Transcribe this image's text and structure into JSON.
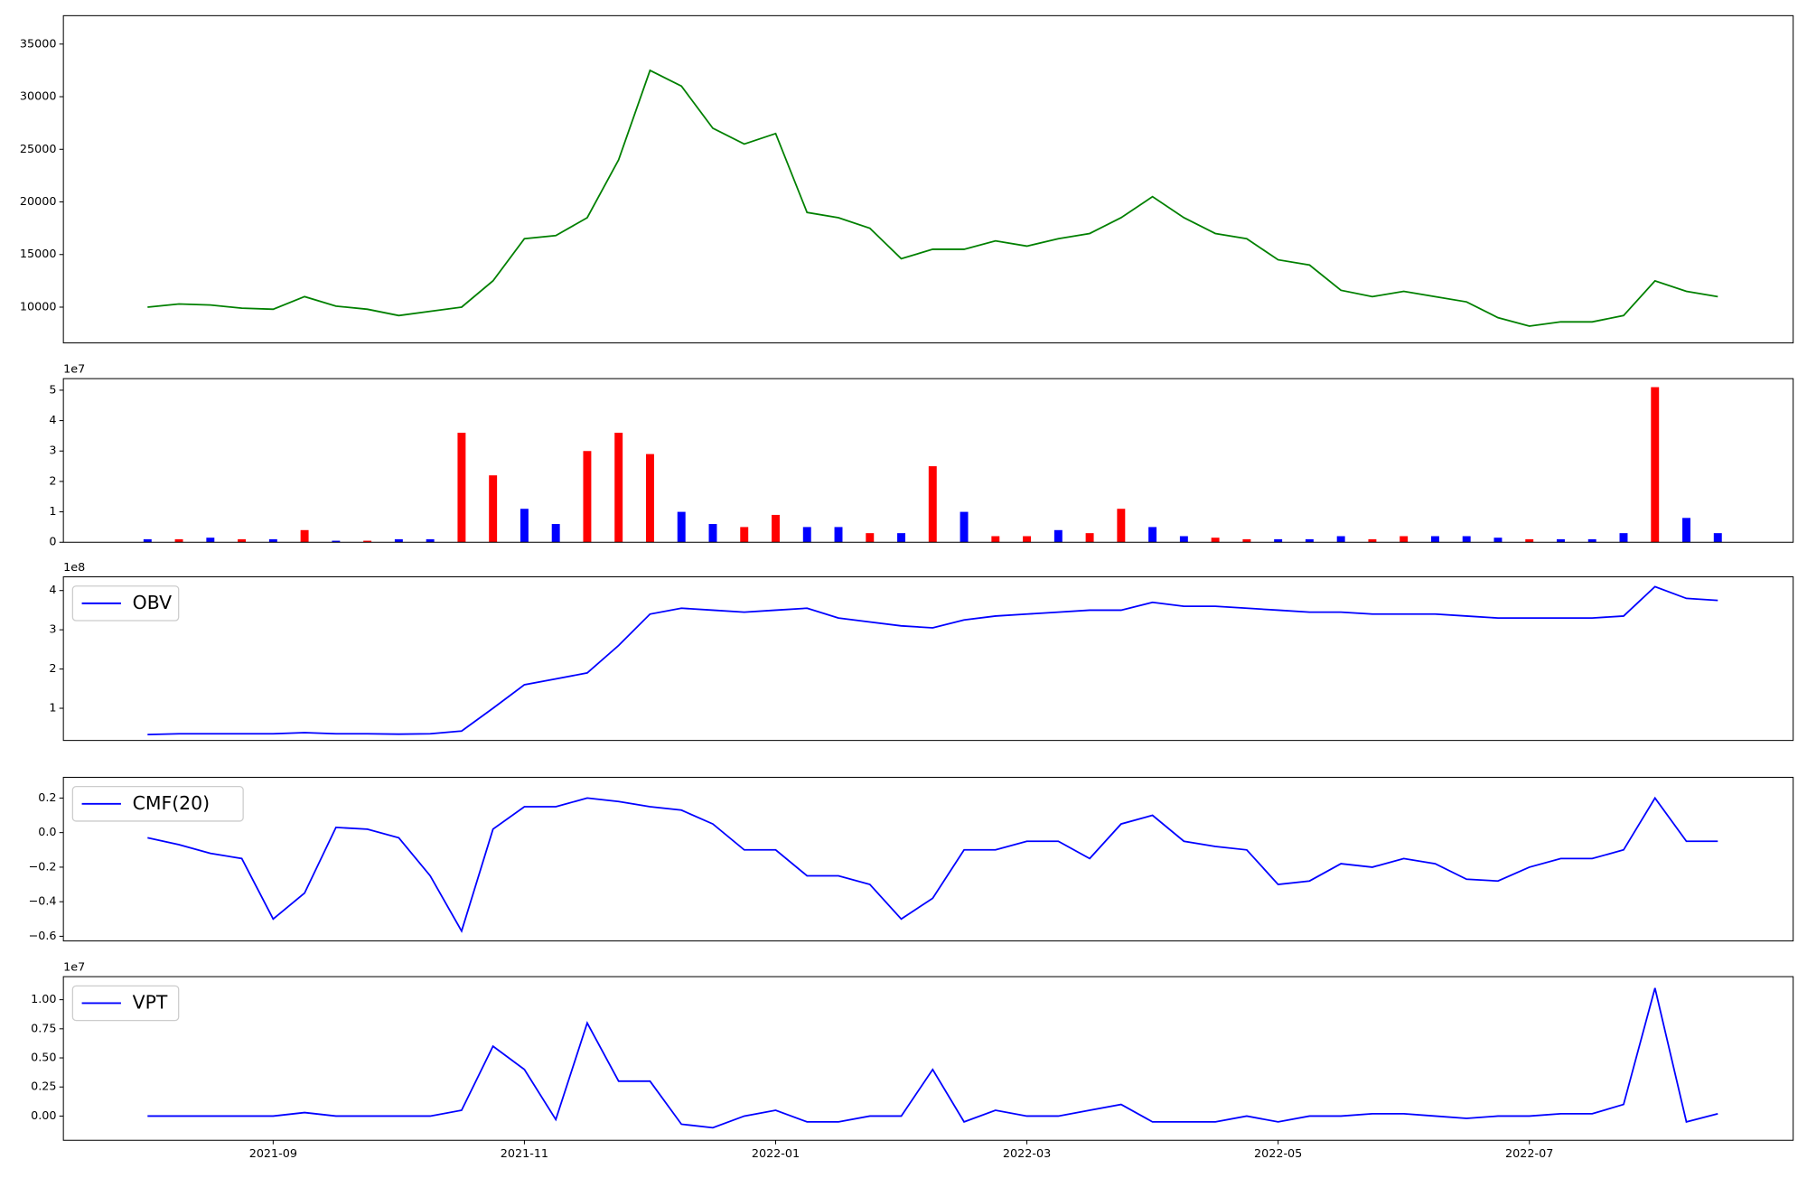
{
  "chart_data": [
    {
      "type": "line",
      "color": "green",
      "x": [
        0,
        0.25,
        0.5,
        0.75,
        1,
        1.25,
        1.5,
        1.75,
        2,
        2.25,
        2.5,
        2.75,
        3,
        3.25,
        3.5,
        3.75,
        4,
        4.25,
        4.5,
        4.75,
        5,
        5.25,
        5.5,
        5.75,
        6,
        6.25,
        6.5,
        6.75,
        7,
        7.25,
        7.5,
        7.75,
        8,
        8.25,
        8.5,
        8.75,
        9,
        9.25,
        9.5,
        9.75,
        10,
        10.25,
        10.5,
        10.75,
        11,
        11.25,
        11.5,
        11.75,
        12,
        12.25,
        12.5
      ],
      "values": [
        10000,
        10300,
        10200,
        9900,
        9800,
        11000,
        10100,
        9800,
        9200,
        9600,
        10000,
        12500,
        16500,
        16800,
        18500,
        24000,
        32500,
        31000,
        27000,
        25500,
        26500,
        19000,
        18500,
        17500,
        14600,
        15500,
        15500,
        16300,
        15800,
        16500,
        17000,
        18500,
        20500,
        18500,
        17000,
        16500,
        14500,
        14000,
        11600,
        11000,
        11500,
        11000,
        10500,
        9000,
        8200,
        8600,
        8600,
        9200,
        12500,
        11500,
        11000
      ],
      "xlim": [
        -0.67,
        13.1
      ],
      "ylim": [
        6600,
        37700
      ],
      "yticks": [
        10000,
        15000,
        20000,
        25000,
        30000,
        35000
      ]
    },
    {
      "type": "bar",
      "offset_label": "1e7",
      "x": [
        0,
        0.25,
        0.5,
        0.75,
        1,
        1.25,
        1.5,
        1.75,
        2,
        2.25,
        2.5,
        2.75,
        3,
        3.25,
        3.5,
        3.75,
        4,
        4.25,
        4.5,
        4.75,
        5,
        5.25,
        5.5,
        5.75,
        6,
        6.25,
        6.5,
        6.75,
        7,
        7.25,
        7.5,
        7.75,
        8,
        8.25,
        8.5,
        8.75,
        9,
        9.25,
        9.5,
        9.75,
        10,
        10.25,
        10.5,
        10.75,
        11,
        11.25,
        11.5,
        11.75,
        12,
        12.25,
        12.5
      ],
      "values": [
        0.1,
        0.1,
        0.15,
        0.1,
        0.1,
        0.4,
        0.05,
        0.05,
        0.1,
        0.1,
        3.6,
        2.2,
        1.1,
        0.6,
        3.0,
        3.6,
        2.9,
        1.0,
        0.6,
        0.5,
        0.9,
        0.5,
        0.5,
        0.3,
        0.3,
        2.5,
        1.0,
        0.2,
        0.2,
        0.4,
        0.3,
        1.1,
        0.5,
        0.2,
        0.15,
        0.1,
        0.1,
        0.1,
        0.2,
        0.1,
        0.2,
        0.2,
        0.2,
        0.15,
        0.1,
        0.1,
        0.1,
        0.3,
        5.1,
        0.8,
        0.3
      ],
      "colors": [
        "blue",
        "red",
        "blue",
        "red",
        "blue",
        "red",
        "blue",
        "red",
        "blue",
        "blue",
        "red",
        "red",
        "blue",
        "blue",
        "red",
        "red",
        "red",
        "blue",
        "blue",
        "red",
        "red",
        "blue",
        "blue",
        "red",
        "blue",
        "red",
        "blue",
        "red",
        "red",
        "blue",
        "red",
        "red",
        "blue",
        "blue",
        "red",
        "red",
        "blue",
        "blue",
        "blue",
        "red",
        "red",
        "blue",
        "blue",
        "blue",
        "red",
        "blue",
        "blue",
        "blue",
        "red",
        "blue",
        "blue"
      ],
      "xlim": [
        -0.67,
        13.1
      ],
      "ylim": [
        0,
        5.38
      ],
      "yticks": [
        0,
        1,
        2,
        3,
        4,
        5
      ]
    },
    {
      "type": "line",
      "offset_label": "1e8",
      "legend": "upper left",
      "x": [
        0,
        0.25,
        0.5,
        0.75,
        1,
        1.25,
        1.5,
        1.75,
        2,
        2.25,
        2.5,
        2.75,
        3,
        3.25,
        3.5,
        3.75,
        4,
        4.25,
        4.5,
        4.75,
        5,
        5.25,
        5.5,
        5.75,
        6,
        6.25,
        6.5,
        6.75,
        7,
        7.25,
        7.5,
        7.75,
        8,
        8.25,
        8.5,
        8.75,
        9,
        9.25,
        9.5,
        9.75,
        10,
        10.25,
        10.5,
        10.75,
        11,
        11.25,
        11.5,
        11.75,
        12,
        12.25,
        12.5
      ],
      "series": [
        {
          "name": "OBV",
          "color": "blue",
          "values": [
            0.33,
            0.35,
            0.35,
            0.35,
            0.35,
            0.38,
            0.35,
            0.35,
            0.34,
            0.35,
            0.42,
            1.0,
            1.6,
            1.75,
            1.9,
            2.6,
            3.4,
            3.55,
            3.5,
            3.45,
            3.5,
            3.55,
            3.3,
            3.2,
            3.1,
            3.05,
            3.25,
            3.35,
            3.4,
            3.45,
            3.5,
            3.5,
            3.7,
            3.6,
            3.6,
            3.55,
            3.5,
            3.45,
            3.45,
            3.4,
            3.4,
            3.4,
            3.35,
            3.3,
            3.3,
            3.3,
            3.3,
            3.35,
            4.1,
            3.8,
            3.75
          ]
        }
      ],
      "xlim": [
        -0.67,
        13.1
      ],
      "ylim": [
        0.18,
        4.35
      ],
      "yticks": [
        1,
        2,
        3,
        4
      ]
    },
    {
      "type": "line",
      "legend": "upper left",
      "x": [
        0,
        0.25,
        0.5,
        0.75,
        1,
        1.25,
        1.5,
        1.75,
        2,
        2.25,
        2.5,
        2.75,
        3,
        3.25,
        3.5,
        3.75,
        4,
        4.25,
        4.5,
        4.75,
        5,
        5.25,
        5.5,
        5.75,
        6,
        6.25,
        6.5,
        6.75,
        7,
        7.25,
        7.5,
        7.75,
        8,
        8.25,
        8.5,
        8.75,
        9,
        9.25,
        9.5,
        9.75,
        10,
        10.25,
        10.5,
        10.75,
        11,
        11.25,
        11.5,
        11.75,
        12,
        12.25,
        12.5
      ],
      "series": [
        {
          "name": "CMF(20)",
          "color": "blue",
          "values": [
            -0.03,
            -0.07,
            -0.12,
            -0.15,
            -0.5,
            -0.35,
            0.03,
            0.02,
            -0.03,
            -0.25,
            -0.57,
            0.02,
            0.15,
            0.15,
            0.2,
            0.18,
            0.15,
            0.13,
            0.05,
            -0.1,
            -0.1,
            -0.25,
            -0.25,
            -0.3,
            -0.5,
            -0.38,
            -0.1,
            -0.1,
            -0.05,
            -0.05,
            -0.15,
            0.05,
            0.1,
            -0.05,
            -0.08,
            -0.1,
            -0.3,
            -0.28,
            -0.18,
            -0.2,
            -0.15,
            -0.18,
            -0.27,
            -0.28,
            -0.2,
            -0.15,
            -0.15,
            -0.1,
            0.2,
            -0.05,
            -0.05
          ]
        }
      ],
      "xlim": [
        -0.67,
        13.1
      ],
      "ylim": [
        -0.627,
        0.32
      ],
      "yticks": [
        {
          "value": -0.6,
          "label": "−0.6"
        },
        {
          "value": -0.4,
          "label": "−0.4"
        },
        {
          "value": -0.2,
          "label": "−0.2"
        },
        {
          "value": 0,
          "label": "0.0"
        },
        0.2
      ]
    },
    {
      "type": "line",
      "offset_label": "1e7",
      "legend": "upper left",
      "x": [
        0,
        0.25,
        0.5,
        0.75,
        1,
        1.25,
        1.5,
        1.75,
        2,
        2.25,
        2.5,
        2.75,
        3,
        3.25,
        3.5,
        3.75,
        4,
        4.25,
        4.5,
        4.75,
        5,
        5.25,
        5.5,
        5.75,
        6,
        6.25,
        6.5,
        6.75,
        7,
        7.25,
        7.5,
        7.75,
        8,
        8.25,
        8.5,
        8.75,
        9,
        9.25,
        9.5,
        9.75,
        10,
        10.25,
        10.5,
        10.75,
        11,
        11.25,
        11.5,
        11.75,
        12,
        12.25,
        12.5
      ],
      "series": [
        {
          "name": "VPT",
          "color": "blue",
          "values": [
            0,
            0,
            0,
            0,
            0,
            0.03,
            0,
            0,
            0,
            0,
            0.05,
            0.6,
            0.4,
            -0.03,
            0.8,
            0.3,
            0.3,
            -0.07,
            -0.1,
            0,
            0.05,
            -0.05,
            -0.05,
            0,
            0,
            0.4,
            -0.05,
            0.05,
            0,
            0,
            0.05,
            0.1,
            -0.05,
            -0.05,
            -0.05,
            0,
            -0.05,
            0,
            0,
            0.02,
            0.02,
            0,
            -0.02,
            0,
            0,
            0.02,
            0.02,
            0.1,
            1.1,
            -0.05,
            0.02
          ]
        }
      ],
      "xlim": [
        -0.67,
        13.1
      ],
      "ylim": [
        -0.208,
        1.198
      ],
      "yticks": [
        {
          "value": 0,
          "label": "0.00"
        },
        {
          "value": 0.25,
          "label": "0.25"
        },
        {
          "value": 0.5,
          "label": "0.50"
        },
        {
          "value": 0.75,
          "label": "0.75"
        },
        {
          "value": 1,
          "label": "1.00"
        }
      ],
      "xticks": [
        {
          "value": 1,
          "label": "2021-09"
        },
        {
          "value": 3,
          "label": "2021-11"
        },
        {
          "value": 5,
          "label": "2022-01"
        },
        {
          "value": 7,
          "label": "2022-03"
        },
        {
          "value": 9,
          "label": "2022-05"
        },
        {
          "value": 11,
          "label": "2022-07"
        }
      ]
    }
  ]
}
